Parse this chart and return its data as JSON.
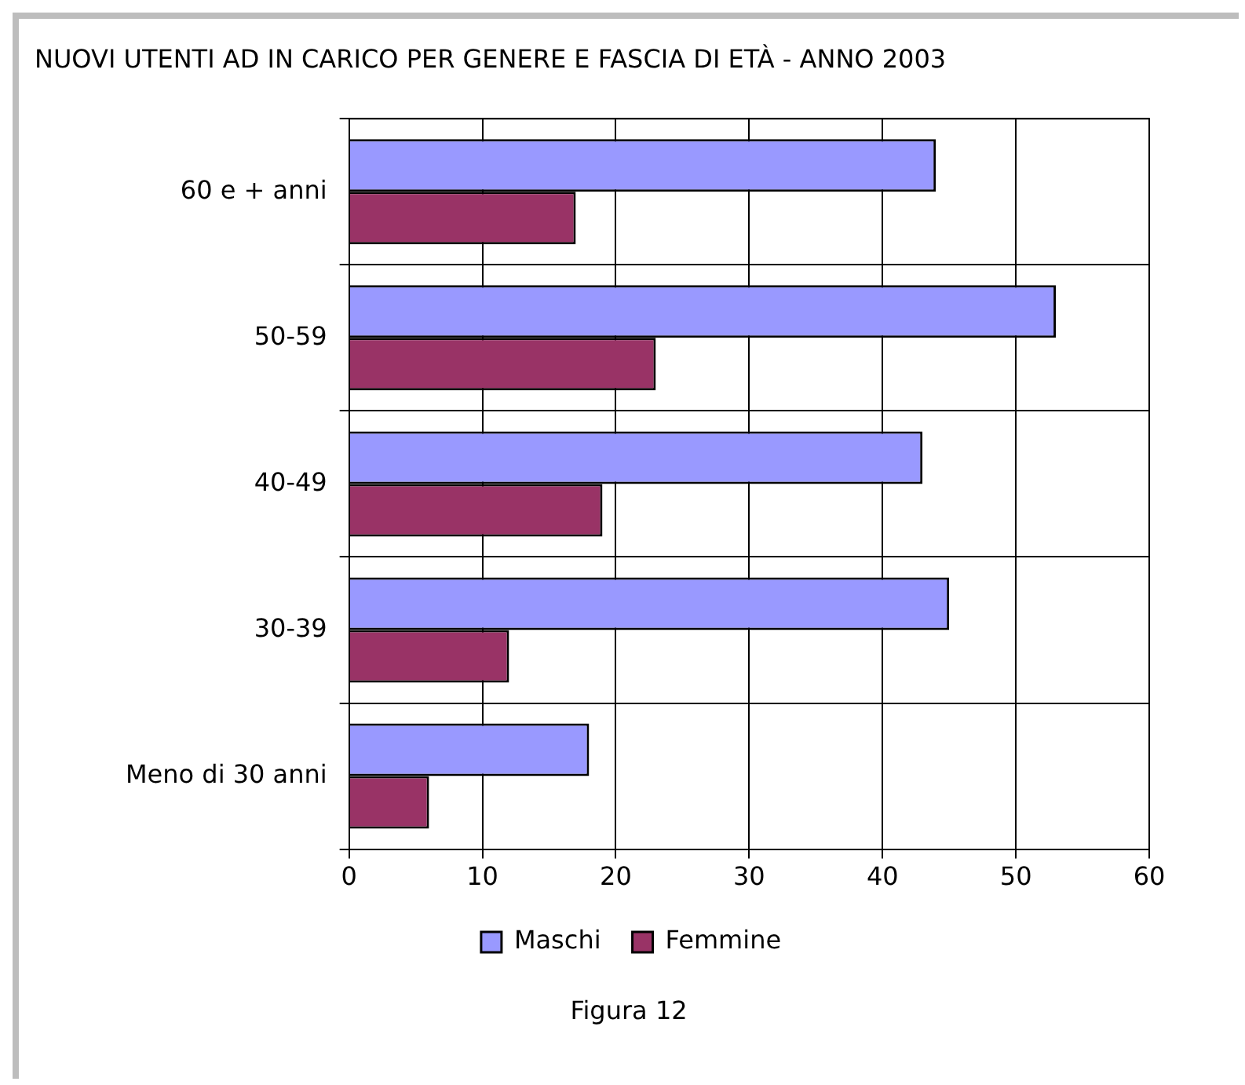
{
  "chart_data": {
    "type": "bar",
    "orientation": "horizontal",
    "title": "NUOVI UTENTI AD IN CARICO PER GENERE E FASCIA DI ETÀ - ANNO 2003",
    "categories": [
      "60 e + anni",
      "50-59",
      "40-49",
      "30-39",
      "Meno di 30 anni"
    ],
    "series": [
      {
        "name": "Maschi",
        "color": "#9999ff",
        "values": [
          44,
          53,
          43,
          45,
          18
        ]
      },
      {
        "name": "Femmine",
        "color": "#993366",
        "values": [
          17,
          23,
          19,
          12,
          6
        ]
      }
    ],
    "xlim": [
      0,
      60
    ],
    "xticks": [
      0,
      10,
      20,
      30,
      40,
      50,
      60
    ],
    "grid": true,
    "legend": "bottom",
    "annotations": [
      "Figura 12"
    ]
  }
}
